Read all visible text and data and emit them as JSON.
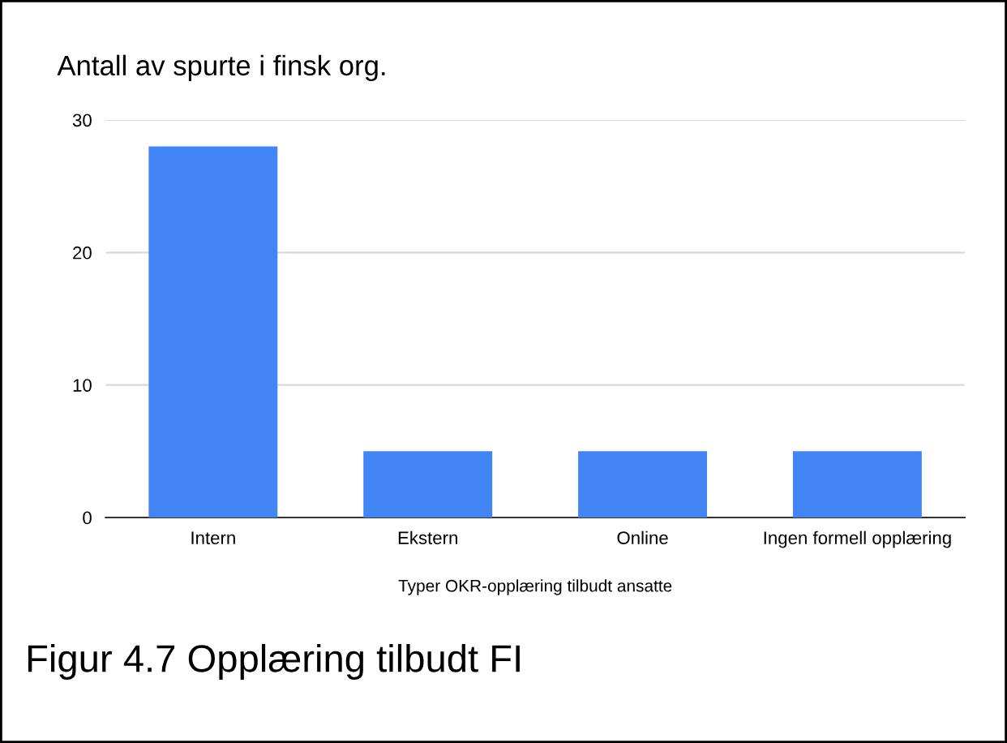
{
  "chart_data": {
    "type": "bar",
    "title": "Antall av spurte i finsk org.",
    "xlabel": "Typer OKR-opplæring tilbudt ansatte",
    "categories": [
      "Intern",
      "Ekstern",
      "Online",
      "Ingen formell opplæring"
    ],
    "values": [
      28,
      5,
      5,
      5
    ],
    "color": "#4285f4",
    "ylim": [
      0,
      30
    ],
    "yticks": [
      0,
      10,
      20,
      30
    ],
    "grid": "y",
    "legend": false,
    "annotations": [
      "Figur 4.7 Opplæring tilbudt FI"
    ]
  }
}
